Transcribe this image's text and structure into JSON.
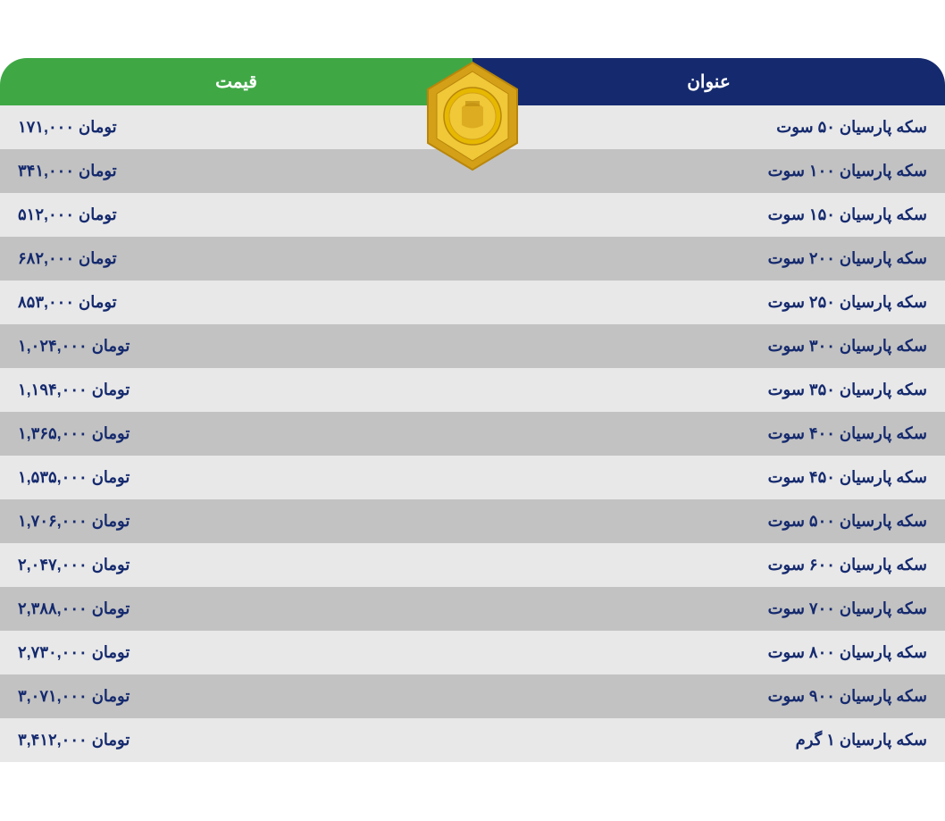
{
  "header": {
    "title_label": "عنوان",
    "price_label": "قیمت",
    "title_bg": "#152a6e",
    "price_bg": "#3fa845",
    "text_color": "#ffffff"
  },
  "coin": {
    "fill_outer": "#d4a017",
    "fill_inner": "#f0c838",
    "stroke": "#b8860b"
  },
  "rows": [
    {
      "title": "سکه پارسیان ۵۰ سوت",
      "price": "۱۷۱,۰۰۰ تومان"
    },
    {
      "title": "سکه پارسیان ۱۰۰ سوت",
      "price": "۳۴۱,۰۰۰ تومان"
    },
    {
      "title": "سکه پارسیان ۱۵۰ سوت",
      "price": "۵۱۲,۰۰۰ تومان"
    },
    {
      "title": "سکه پارسیان ۲۰۰ سوت",
      "price": "۶۸۲,۰۰۰ تومان"
    },
    {
      "title": "سکه پارسیان ۲۵۰ سوت",
      "price": "۸۵۳,۰۰۰ تومان"
    },
    {
      "title": "سکه پارسیان ۳۰۰ سوت",
      "price": "۱,۰۲۴,۰۰۰ تومان"
    },
    {
      "title": "سکه پارسیان ۳۵۰ سوت",
      "price": "۱,۱۹۴,۰۰۰ تومان"
    },
    {
      "title": "سکه پارسیان ۴۰۰ سوت",
      "price": "۱,۳۶۵,۰۰۰ تومان"
    },
    {
      "title": "سکه پارسیان ۴۵۰ سوت",
      "price": "۱,۵۳۵,۰۰۰ تومان"
    },
    {
      "title": "سکه پارسیان ۵۰۰ سوت",
      "price": "۱,۷۰۶,۰۰۰ تومان"
    },
    {
      "title": "سکه پارسیان ۶۰۰ سوت",
      "price": "۲,۰۴۷,۰۰۰ تومان"
    },
    {
      "title": "سکه پارسیان ۷۰۰ سوت",
      "price": "۲,۳۸۸,۰۰۰ تومان"
    },
    {
      "title": "سکه پارسیان ۸۰۰ سوت",
      "price": "۲,۷۳۰,۰۰۰ تومان"
    },
    {
      "title": "سکه پارسیان ۹۰۰ سوت",
      "price": "۳,۰۷۱,۰۰۰ تومان"
    },
    {
      "title": "سکه پارسیان ۱ گرم",
      "price": "۳,۴۱۲,۰۰۰ تومان"
    }
  ],
  "styles": {
    "row_odd_bg": "#e8e8e8",
    "row_even_bg": "#c2c2c2",
    "text_color": "#152a6e",
    "font_size": 18
  }
}
